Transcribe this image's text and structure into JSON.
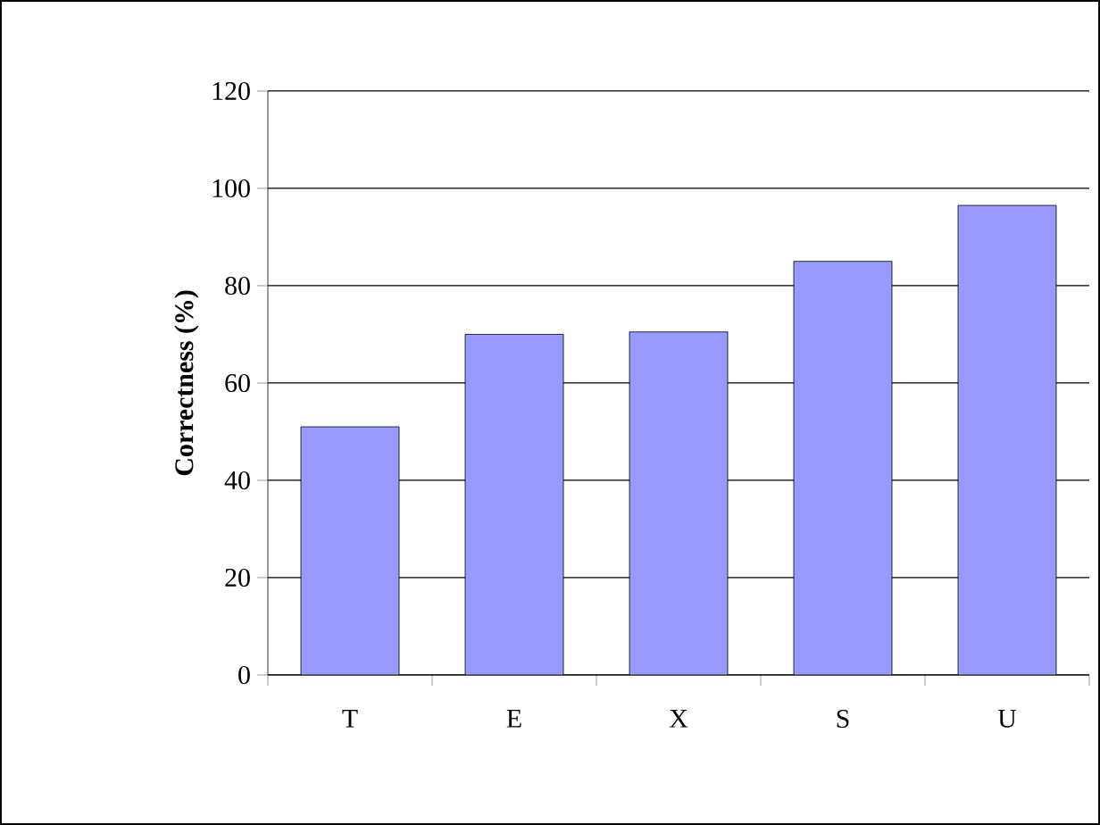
{
  "chart_data": {
    "type": "bar",
    "ylabel": "Correctness (%)",
    "categories": [
      "T",
      "E",
      "X",
      "S",
      "U"
    ],
    "values": [
      51,
      70,
      70.5,
      85,
      96.5
    ],
    "color": "#9999ff",
    "ylim": [
      0,
      120
    ],
    "yticks": [
      0,
      20,
      40,
      60,
      80,
      100,
      120
    ],
    "grid": "y"
  }
}
